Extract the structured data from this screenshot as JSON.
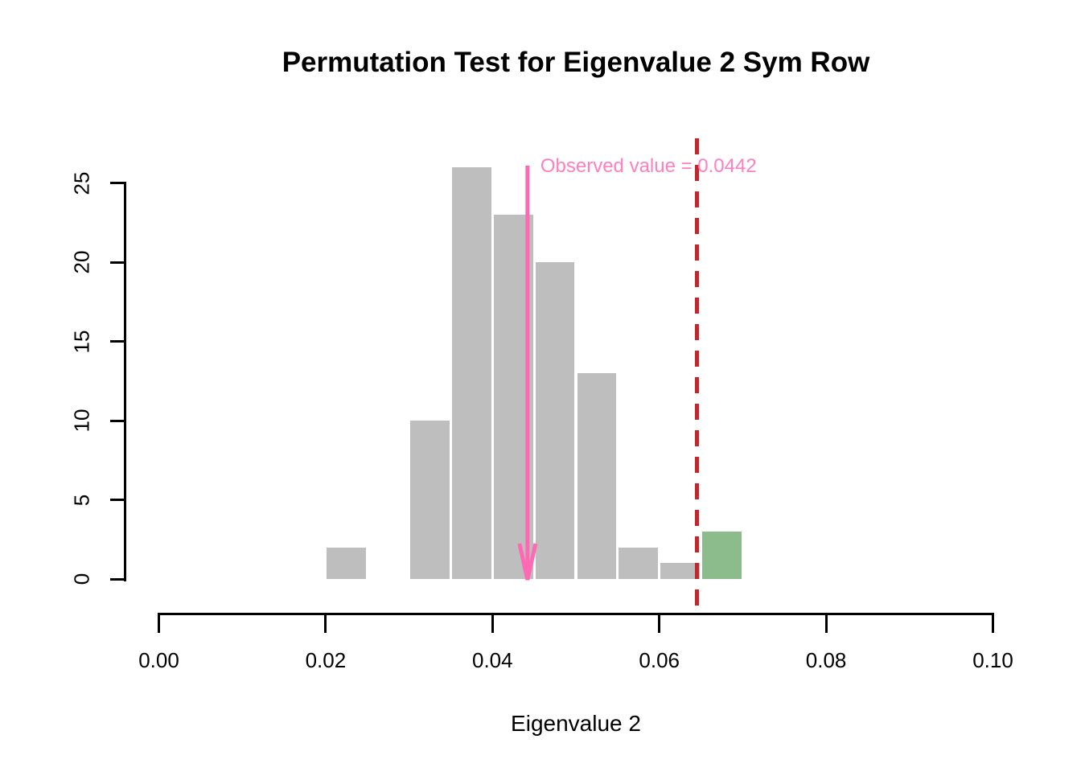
{
  "page": {
    "background_color": "#FFFFFF"
  },
  "chart_data": {
    "type": "bar",
    "variant": "histogram",
    "title": "Permutation Test for Eigenvalue 2 Sym Row",
    "xlabel": "Eigenvalue 2",
    "ylabel": "",
    "xlim": [
      0.0,
      0.1
    ],
    "ylim": [
      0,
      25
    ],
    "x_ticks": [
      {
        "value": 0.0,
        "label": "0.00"
      },
      {
        "value": 0.02,
        "label": "0.02"
      },
      {
        "value": 0.04,
        "label": "0.04"
      },
      {
        "value": 0.06,
        "label": "0.06"
      },
      {
        "value": 0.08,
        "label": "0.08"
      },
      {
        "value": 0.1,
        "label": "0.10"
      }
    ],
    "y_ticks": [
      {
        "value": 0,
        "label": "0"
      },
      {
        "value": 5,
        "label": "5"
      },
      {
        "value": 10,
        "label": "10"
      },
      {
        "value": 15,
        "label": "15"
      },
      {
        "value": 20,
        "label": "20"
      },
      {
        "value": 25,
        "label": "25"
      }
    ],
    "bin_width": 0.005,
    "bins": [
      {
        "x0": 0.02,
        "x1": 0.025,
        "count": 2,
        "highlight": false
      },
      {
        "x0": 0.025,
        "x1": 0.03,
        "count": 0,
        "highlight": false
      },
      {
        "x0": 0.03,
        "x1": 0.035,
        "count": 10,
        "highlight": false
      },
      {
        "x0": 0.035,
        "x1": 0.04,
        "count": 26,
        "highlight": false
      },
      {
        "x0": 0.04,
        "x1": 0.045,
        "count": 23,
        "highlight": false
      },
      {
        "x0": 0.045,
        "x1": 0.05,
        "count": 20,
        "highlight": false
      },
      {
        "x0": 0.05,
        "x1": 0.055,
        "count": 13,
        "highlight": false
      },
      {
        "x0": 0.055,
        "x1": 0.06,
        "count": 2,
        "highlight": false
      },
      {
        "x0": 0.06,
        "x1": 0.065,
        "count": 1,
        "highlight": false
      },
      {
        "x0": 0.065,
        "x1": 0.07,
        "count": 3,
        "highlight": true
      }
    ],
    "observed": {
      "value": 0.0442,
      "label": "Observed value = 0.0442",
      "arrow_color": "#FF69B4",
      "label_color": "#FF7FC0"
    },
    "threshold_line": {
      "value": 0.0645,
      "style": "dashed",
      "color": "#C4272B"
    },
    "colors": {
      "bar_default": "#BEBEBE",
      "bar_highlight": "#8CBC8C",
      "axis": "#000000"
    },
    "grid": false,
    "legend": "none"
  }
}
